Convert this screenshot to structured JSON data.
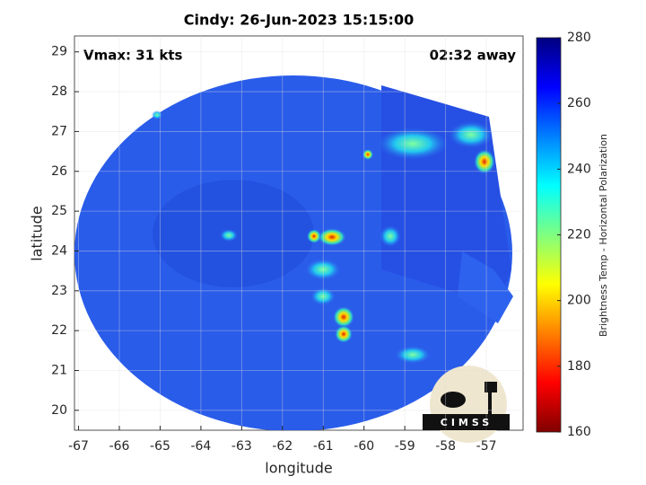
{
  "chart_data": {
    "type": "image",
    "title": "Cindy: 26-Jun-2023 15:15:00",
    "annotations": [
      "Vmax: 31 kts",
      "02:32 away"
    ],
    "x_label": "longitude",
    "y_label": "latitude",
    "xlim": [
      -67.1,
      -56.1
    ],
    "xticks": [
      -67,
      -66,
      -65,
      -64,
      -63,
      -62,
      -61,
      -60,
      -59,
      -58,
      -57
    ],
    "ylim": [
      19.5,
      29.4
    ],
    "yticks": [
      20,
      21,
      22,
      23,
      24,
      25,
      26,
      27,
      28,
      29
    ],
    "grid": true,
    "colormap": "jet",
    "colorbar": {
      "label": "Brightness Temp - Horizontal Polarization",
      "lim": [
        160,
        280
      ],
      "ticks": [
        160,
        180,
        200,
        220,
        240,
        260,
        280
      ]
    },
    "logo": "CIMSS"
  }
}
